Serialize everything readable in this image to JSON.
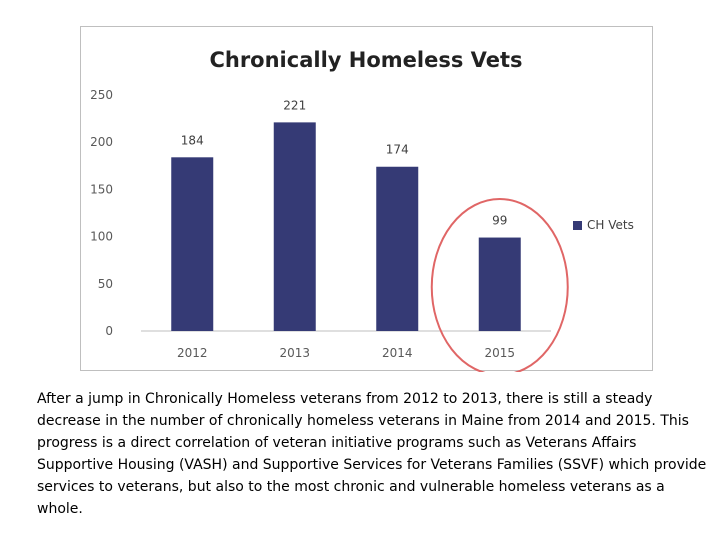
{
  "chart_data": {
    "type": "bar",
    "title": "Chronically Homeless Vets",
    "categories": [
      "2012",
      "2013",
      "2014",
      "2015"
    ],
    "series": [
      {
        "name": "CH Vets",
        "values": [
          184,
          221,
          174,
          99
        ]
      }
    ],
    "data_labels": [
      "184",
      "221",
      "174",
      "99"
    ],
    "ylim": [
      0,
      250
    ],
    "yticks": [
      0,
      50,
      100,
      150,
      200,
      250
    ],
    "xlabel": "",
    "ylabel": "",
    "legend_position": "right",
    "grid": false,
    "bar_color": "#353a75",
    "annotation": {
      "type": "ellipse-highlight",
      "target_category": "2015",
      "color": "#e06666"
    }
  },
  "caption": "After a jump in Chronically Homeless veterans from 2012 to 2013, there is still a steady decrease in the number of chronically homeless veterans in Maine from 2014 and 2015. This progress is a direct correlation of veteran initiative programs such as Veterans Affairs Supportive Housing (VASH) and Supportive Services for Veterans Families (SSVF) which provide services to veterans, but also to the most chronic and vulnerable homeless veterans as a whole."
}
